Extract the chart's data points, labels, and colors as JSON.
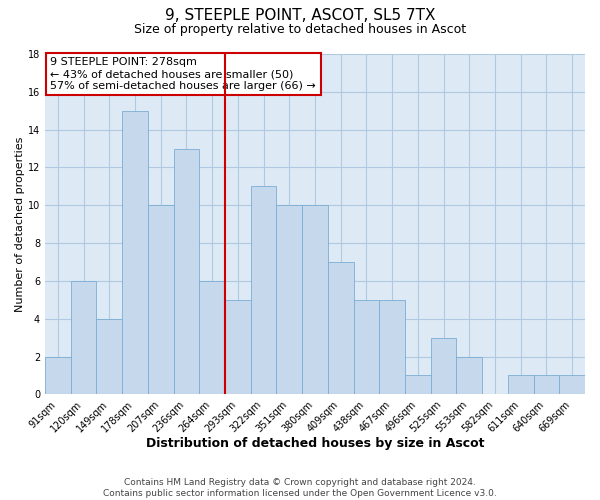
{
  "title": "9, STEEPLE POINT, ASCOT, SL5 7TX",
  "subtitle": "Size of property relative to detached houses in Ascot",
  "xlabel": "Distribution of detached houses by size in Ascot",
  "ylabel": "Number of detached properties",
  "bar_labels": [
    "91sqm",
    "120sqm",
    "149sqm",
    "178sqm",
    "207sqm",
    "236sqm",
    "264sqm",
    "293sqm",
    "322sqm",
    "351sqm",
    "380sqm",
    "409sqm",
    "438sqm",
    "467sqm",
    "496sqm",
    "525sqm",
    "553sqm",
    "582sqm",
    "611sqm",
    "640sqm",
    "669sqm"
  ],
  "bar_values": [
    2,
    6,
    4,
    15,
    10,
    13,
    6,
    5,
    11,
    10,
    10,
    7,
    5,
    5,
    1,
    3,
    2,
    0,
    1,
    1,
    1
  ],
  "bar_color": "#c5d8ec",
  "bar_edge_color": "#7aadd4",
  "grid_color": "#b0c8e0",
  "bg_color": "#ddeaf6",
  "fig_bg_color": "#ffffff",
  "vline_x": 6.5,
  "vline_color": "#cc0000",
  "annotation_title": "9 STEEPLE POINT: 278sqm",
  "annotation_line1": "← 43% of detached houses are smaller (50)",
  "annotation_line2": "57% of semi-detached houses are larger (66) →",
  "annotation_box_color": "#ffffff",
  "annotation_box_edge": "#cc0000",
  "footer_line1": "Contains HM Land Registry data © Crown copyright and database right 2024.",
  "footer_line2": "Contains public sector information licensed under the Open Government Licence v3.0.",
  "ylim": [
    0,
    18
  ],
  "yticks": [
    0,
    2,
    4,
    6,
    8,
    10,
    12,
    14,
    16,
    18
  ],
  "title_fontsize": 11,
  "subtitle_fontsize": 9,
  "xlabel_fontsize": 9,
  "ylabel_fontsize": 8,
  "tick_fontsize": 7,
  "footer_fontsize": 6.5,
  "annotation_fontsize": 8
}
